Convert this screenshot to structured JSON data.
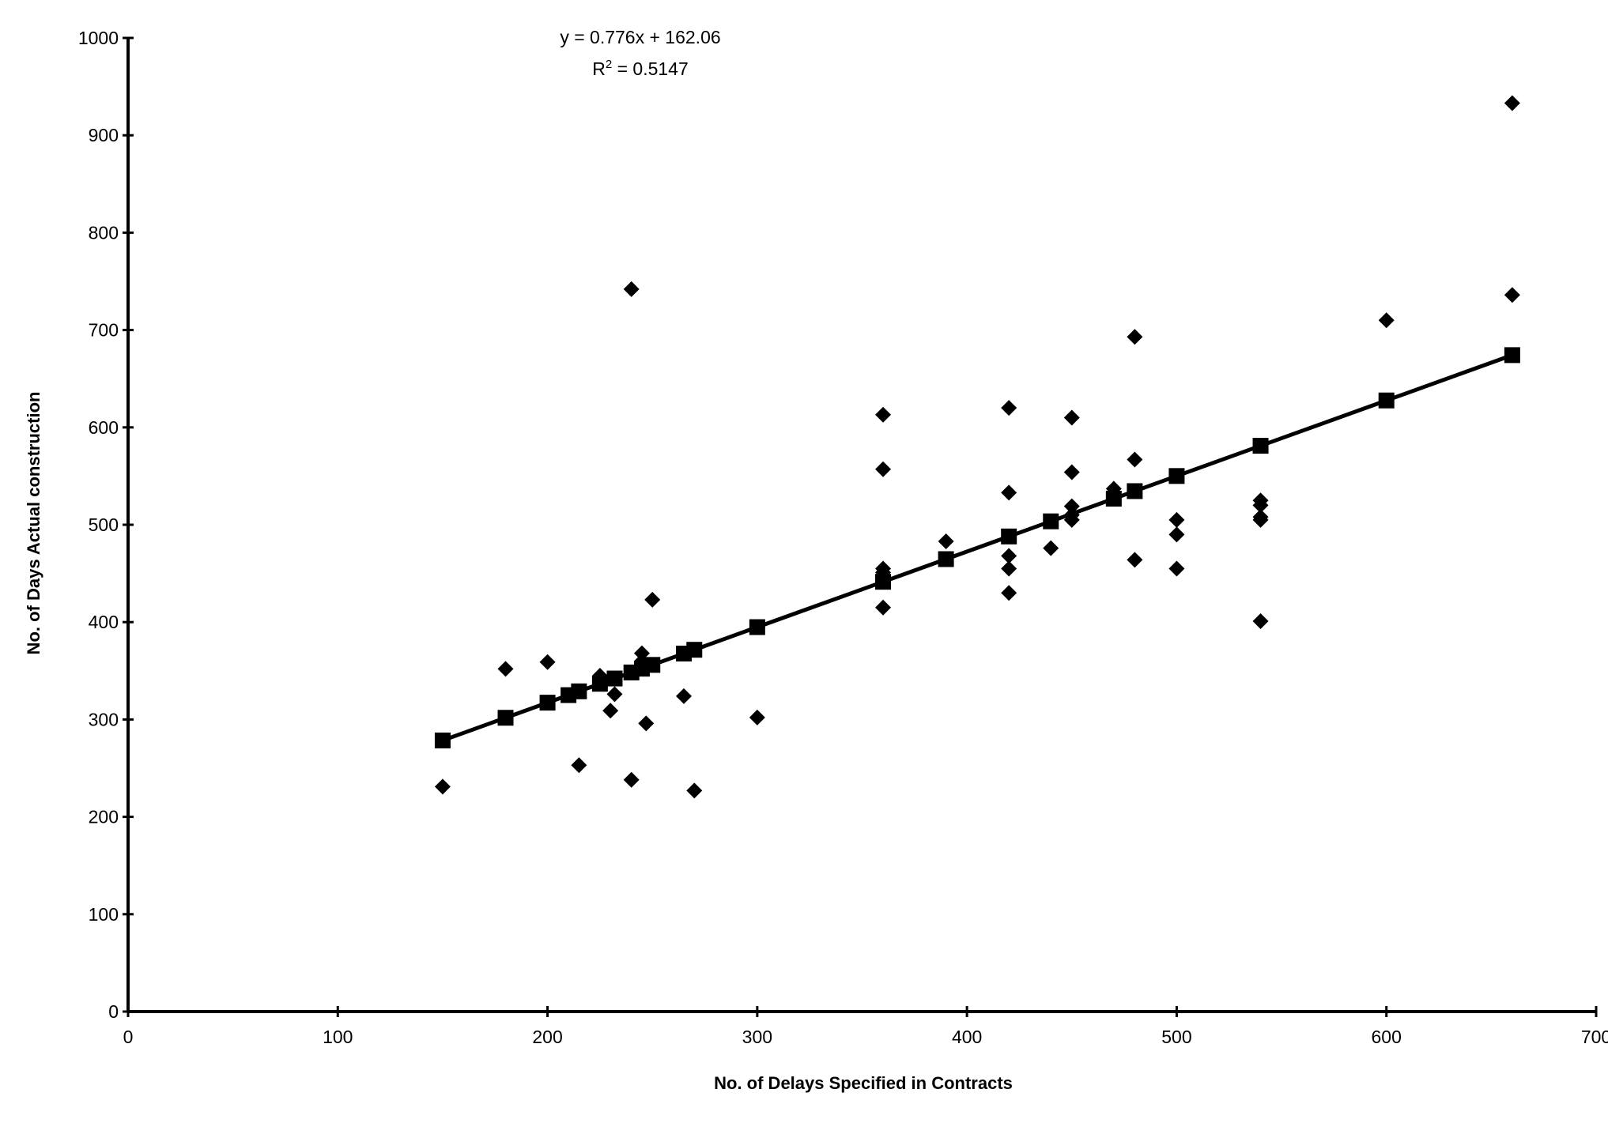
{
  "chart_data": {
    "type": "scatter",
    "title": "",
    "xlabel": "No. of Delays Specified in Contracts",
    "ylabel": "No. of Days Actual construction",
    "xlim": [
      0,
      700
    ],
    "ylim": [
      0,
      1000
    ],
    "xticks": [
      0,
      100,
      200,
      300,
      400,
      500,
      600,
      700
    ],
    "yticks": [
      0,
      100,
      200,
      300,
      400,
      500,
      600,
      700,
      800,
      900,
      1000
    ],
    "grid": false,
    "annotation": {
      "equation": "y = 0.776x + 162.06",
      "r2_prefix": "R",
      "r2_sup": "2",
      "r2_value": " = 0.5147"
    },
    "trend": {
      "slope": 0.776,
      "intercept": 162.06,
      "marker": "square",
      "x": [
        150,
        180,
        200,
        210,
        215,
        225,
        232,
        240,
        245,
        250,
        265,
        270,
        300,
        360,
        390,
        420,
        440,
        470,
        480,
        500,
        540,
        600,
        660
      ]
    },
    "series": [
      {
        "marker": "diamond",
        "points": [
          [
            150,
            231
          ],
          [
            180,
            352
          ],
          [
            200,
            359
          ],
          [
            215,
            253
          ],
          [
            225,
            345
          ],
          [
            230,
            309
          ],
          [
            232,
            326
          ],
          [
            240,
            742
          ],
          [
            240,
            238
          ],
          [
            245,
            368
          ],
          [
            245,
            360
          ],
          [
            247,
            296
          ],
          [
            250,
            423
          ],
          [
            265,
            324
          ],
          [
            270,
            227
          ],
          [
            300,
            302
          ],
          [
            360,
            613
          ],
          [
            360,
            557
          ],
          [
            360,
            455
          ],
          [
            360,
            451
          ],
          [
            360,
            415
          ],
          [
            390,
            483
          ],
          [
            420,
            620
          ],
          [
            420,
            533
          ],
          [
            420,
            468
          ],
          [
            420,
            455
          ],
          [
            420,
            430
          ],
          [
            440,
            476
          ],
          [
            450,
            610
          ],
          [
            450,
            554
          ],
          [
            450,
            519
          ],
          [
            450,
            510
          ],
          [
            450,
            505
          ],
          [
            470,
            537
          ],
          [
            480,
            693
          ],
          [
            480,
            567
          ],
          [
            480,
            464
          ],
          [
            500,
            505
          ],
          [
            500,
            490
          ],
          [
            500,
            455
          ],
          [
            540,
            525
          ],
          [
            540,
            520
          ],
          [
            540,
            508
          ],
          [
            540,
            505
          ],
          [
            540,
            401
          ],
          [
            600,
            710
          ],
          [
            660,
            933
          ],
          [
            660,
            736
          ]
        ]
      }
    ]
  }
}
